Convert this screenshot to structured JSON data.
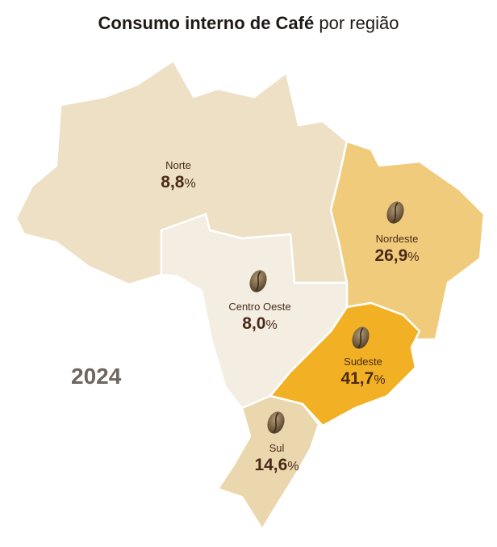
{
  "title": {
    "bold": "Consumo interno de Café",
    "rest": "por região"
  },
  "year": "2024",
  "regions": [
    {
      "name": "Norte",
      "value": "8,8",
      "unit": "%",
      "color": "#ede0c4",
      "icon": "coffee-bean-icon"
    },
    {
      "name": "Nordeste",
      "value": "26,9",
      "unit": "%",
      "color": "#f0cb7b",
      "icon": "coffee-bean-icon"
    },
    {
      "name": "Centro Oeste",
      "value": "8,0",
      "unit": "%",
      "color": "#f3ede2",
      "icon": "coffee-bean-icon"
    },
    {
      "name": "Sudeste",
      "value": "41,7",
      "unit": "%",
      "color": "#f2b124",
      "icon": "coffee-bean-icon"
    },
    {
      "name": "Sul",
      "value": "14,6",
      "unit": "%",
      "color": "#ead7ad",
      "icon": "coffee-bean-icon"
    }
  ]
}
